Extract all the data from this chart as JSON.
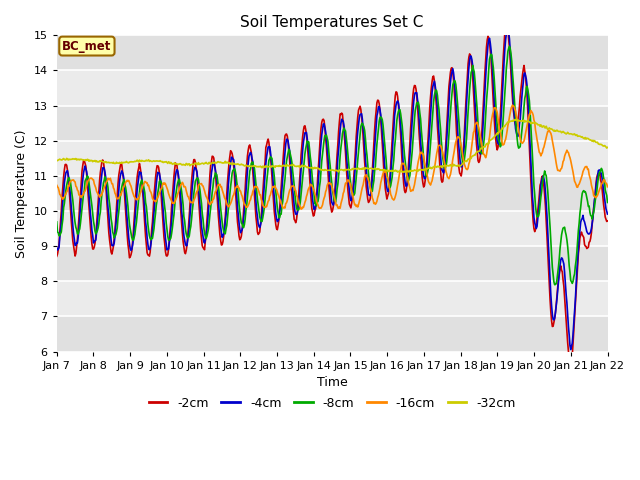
{
  "title": "Soil Temperatures Set C",
  "xlabel": "Time",
  "ylabel": "Soil Temperature (C)",
  "ylim": [
    6.0,
    15.0
  ],
  "yticks": [
    6.0,
    7.0,
    8.0,
    9.0,
    10.0,
    11.0,
    12.0,
    13.0,
    14.0,
    15.0
  ],
  "x_labels": [
    "Jan 7",
    "Jan 8",
    "Jan 9",
    "Jan 10",
    "Jan 11",
    "Jan 12",
    "Jan 13",
    "Jan 14",
    "Jan 15",
    "Jan 16",
    "Jan 17",
    "Jan 18",
    "Jan 19",
    "Jan 20",
    "Jan 21",
    "Jan 22"
  ],
  "annotation_text": "BC_met",
  "series": {
    "-2cm": {
      "color": "#cc0000",
      "lw": 1.2
    },
    "-4cm": {
      "color": "#0000cc",
      "lw": 1.2
    },
    "-8cm": {
      "color": "#00aa00",
      "lw": 1.2
    },
    "-16cm": {
      "color": "#ff8800",
      "lw": 1.2
    },
    "-32cm": {
      "color": "#cccc00",
      "lw": 1.2
    }
  },
  "fig_bg": "#ffffff",
  "plot_bg": "#f0f0f0",
  "grid_color": "#ffffff",
  "legend_colors": [
    "#cc0000",
    "#0000cc",
    "#00aa00",
    "#ff8800",
    "#cccc00"
  ],
  "legend_labels": [
    "-2cm",
    "-4cm",
    "-8cm",
    "-16cm",
    "-32cm"
  ]
}
